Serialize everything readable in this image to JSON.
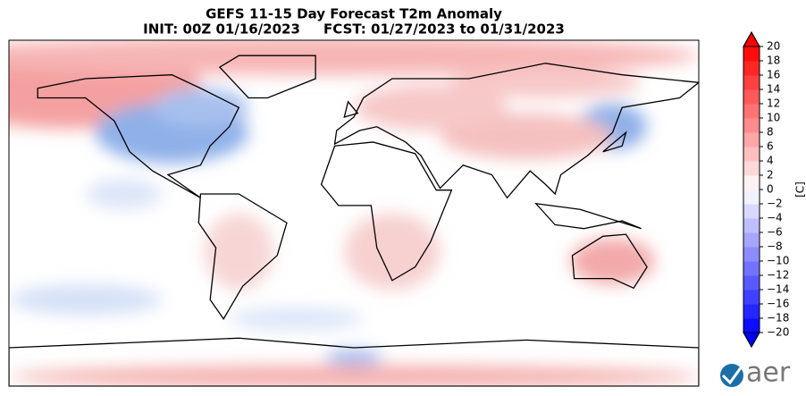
{
  "title": "GEFS 11-15 Day Forecast T2m Anomaly",
  "subtitle": "INIT: 00Z 01/16/2023     FCST: 01/27/2023 to 01/31/2023",
  "colorbar": {
    "lim": [
      -20,
      20
    ],
    "label": "[C]",
    "ticks": [
      {
        "value": -20,
        "label": "−20"
      },
      {
        "value": -18,
        "label": "−18"
      },
      {
        "value": -16,
        "label": "−16"
      },
      {
        "value": -14,
        "label": "−14"
      },
      {
        "value": -12,
        "label": "−12"
      },
      {
        "value": -10,
        "label": "−10"
      },
      {
        "value": -8,
        "label": "−8"
      },
      {
        "value": -6,
        "label": "−6"
      },
      {
        "value": -4,
        "label": "−4"
      },
      {
        "value": -2,
        "label": "−2"
      },
      0,
      2,
      4,
      6,
      8,
      10,
      12,
      14,
      16,
      18,
      20
    ]
  },
  "logo": {
    "text": "aer"
  }
}
